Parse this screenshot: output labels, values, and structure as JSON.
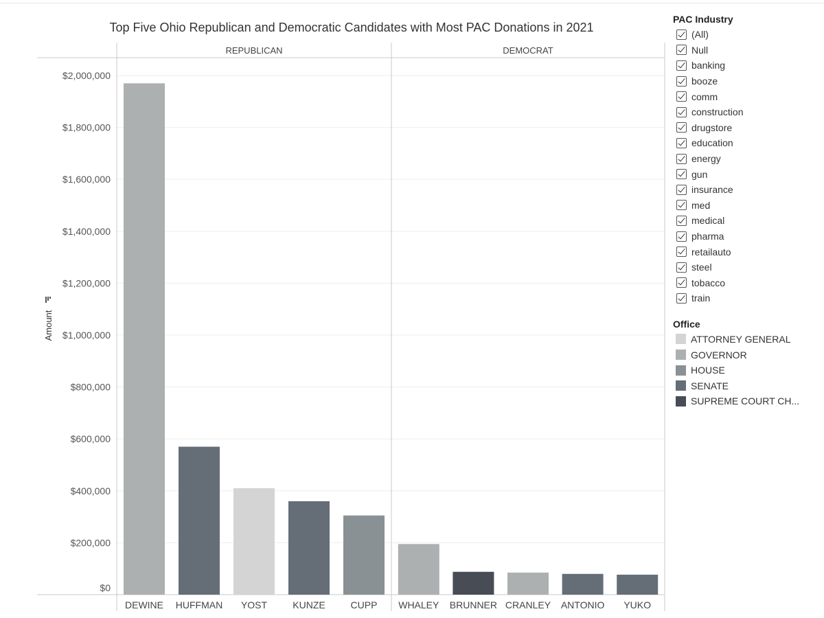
{
  "chart_data": {
    "type": "bar",
    "title": "Top Five Ohio Republican and Democratic Candidates with Most PAC Donations in 2021",
    "ylabel": "Amount",
    "ylim": [
      0,
      2100000
    ],
    "yticks": [
      {
        "value": 0,
        "label": "$0"
      },
      {
        "value": 200000,
        "label": "$200,000"
      },
      {
        "value": 400000,
        "label": "$400,000"
      },
      {
        "value": 600000,
        "label": "$600,000"
      },
      {
        "value": 800000,
        "label": "$800,000"
      },
      {
        "value": 1000000,
        "label": "$1,000,000"
      },
      {
        "value": 1200000,
        "label": "$1,200,000"
      },
      {
        "value": 1400000,
        "label": "$1,400,000"
      },
      {
        "value": 1600000,
        "label": "$1,600,000"
      },
      {
        "value": 1800000,
        "label": "$1,800,000"
      },
      {
        "value": 2000000,
        "label": "$2,000,000"
      }
    ],
    "grid": true,
    "panels": [
      {
        "name": "REPUBLICAN",
        "bars": [
          {
            "candidate": "DEWINE",
            "value": 1970000,
            "office": "GOVERNOR"
          },
          {
            "candidate": "HUFFMAN",
            "value": 570000,
            "office": "SENATE"
          },
          {
            "candidate": "YOST",
            "value": 410000,
            "office": "ATTORNEY GENERAL"
          },
          {
            "candidate": "KUNZE",
            "value": 360000,
            "office": "SENATE"
          },
          {
            "candidate": "CUPP",
            "value": 305000,
            "office": "HOUSE"
          }
        ]
      },
      {
        "name": "DEMOCRAT",
        "bars": [
          {
            "candidate": "WHALEY",
            "value": 195000,
            "office": "GOVERNOR"
          },
          {
            "candidate": "BRUNNER",
            "value": 88000,
            "office": "SUPREME COURT CH..."
          },
          {
            "candidate": "CRANLEY",
            "value": 85000,
            "office": "GOVERNOR"
          },
          {
            "candidate": "ANTONIO",
            "value": 80000,
            "office": "SENATE"
          },
          {
            "candidate": "YUKO",
            "value": 77000,
            "office": "SENATE"
          }
        ]
      }
    ],
    "legend_position": "right"
  },
  "filter": {
    "title": "PAC Industry",
    "items": [
      "(All)",
      "Null",
      "banking",
      "booze",
      "comm",
      "construction",
      "drugstore",
      "education",
      "energy",
      "gun",
      "insurance",
      "med",
      "medical",
      "pharma",
      "retailauto",
      "steel",
      "tobacco",
      "train"
    ]
  },
  "office_legend": {
    "title": "Office",
    "items": [
      {
        "label": "ATTORNEY GENERAL",
        "color": "#d4d4d4"
      },
      {
        "label": "GOVERNOR",
        "color": "#adb0b1"
      },
      {
        "label": "HOUSE",
        "color": "#8a9194"
      },
      {
        "label": "SENATE",
        "color": "#656e77"
      },
      {
        "label": "SUPREME COURT CH...",
        "color": "#474c55"
      }
    ]
  }
}
